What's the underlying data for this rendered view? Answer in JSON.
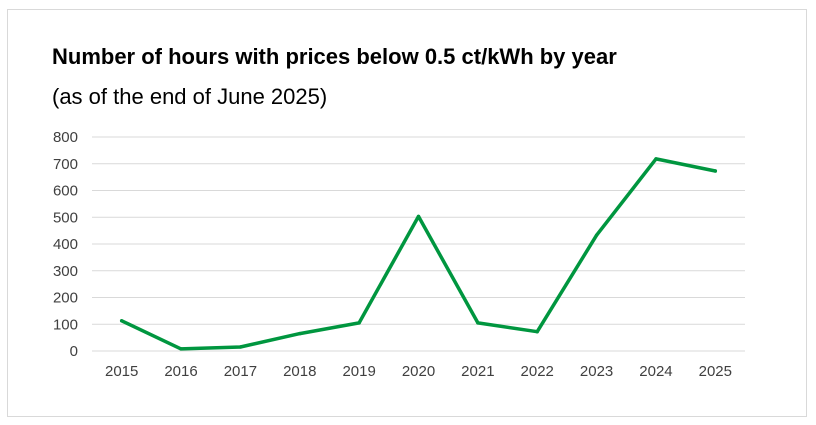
{
  "chart_data": {
    "type": "line",
    "title": "Number of hours with prices below 0.5 ct/kWh by year",
    "subtitle": "(as of the end of June 2025)",
    "xlabel": "",
    "ylabel": "",
    "ylim": [
      0,
      800
    ],
    "yticks": [
      0,
      100,
      200,
      300,
      400,
      500,
      600,
      700,
      800
    ],
    "grid": true,
    "legend": "none",
    "categories": [
      "2015",
      "2016",
      "2017",
      "2018",
      "2019",
      "2020",
      "2021",
      "2022",
      "2023",
      "2024",
      "2025"
    ],
    "series": [
      {
        "values": [
          113,
          8,
          15,
          65,
          105,
          503,
          105,
          72,
          433,
          718,
          673
        ],
        "color": "#00963f"
      }
    ]
  }
}
